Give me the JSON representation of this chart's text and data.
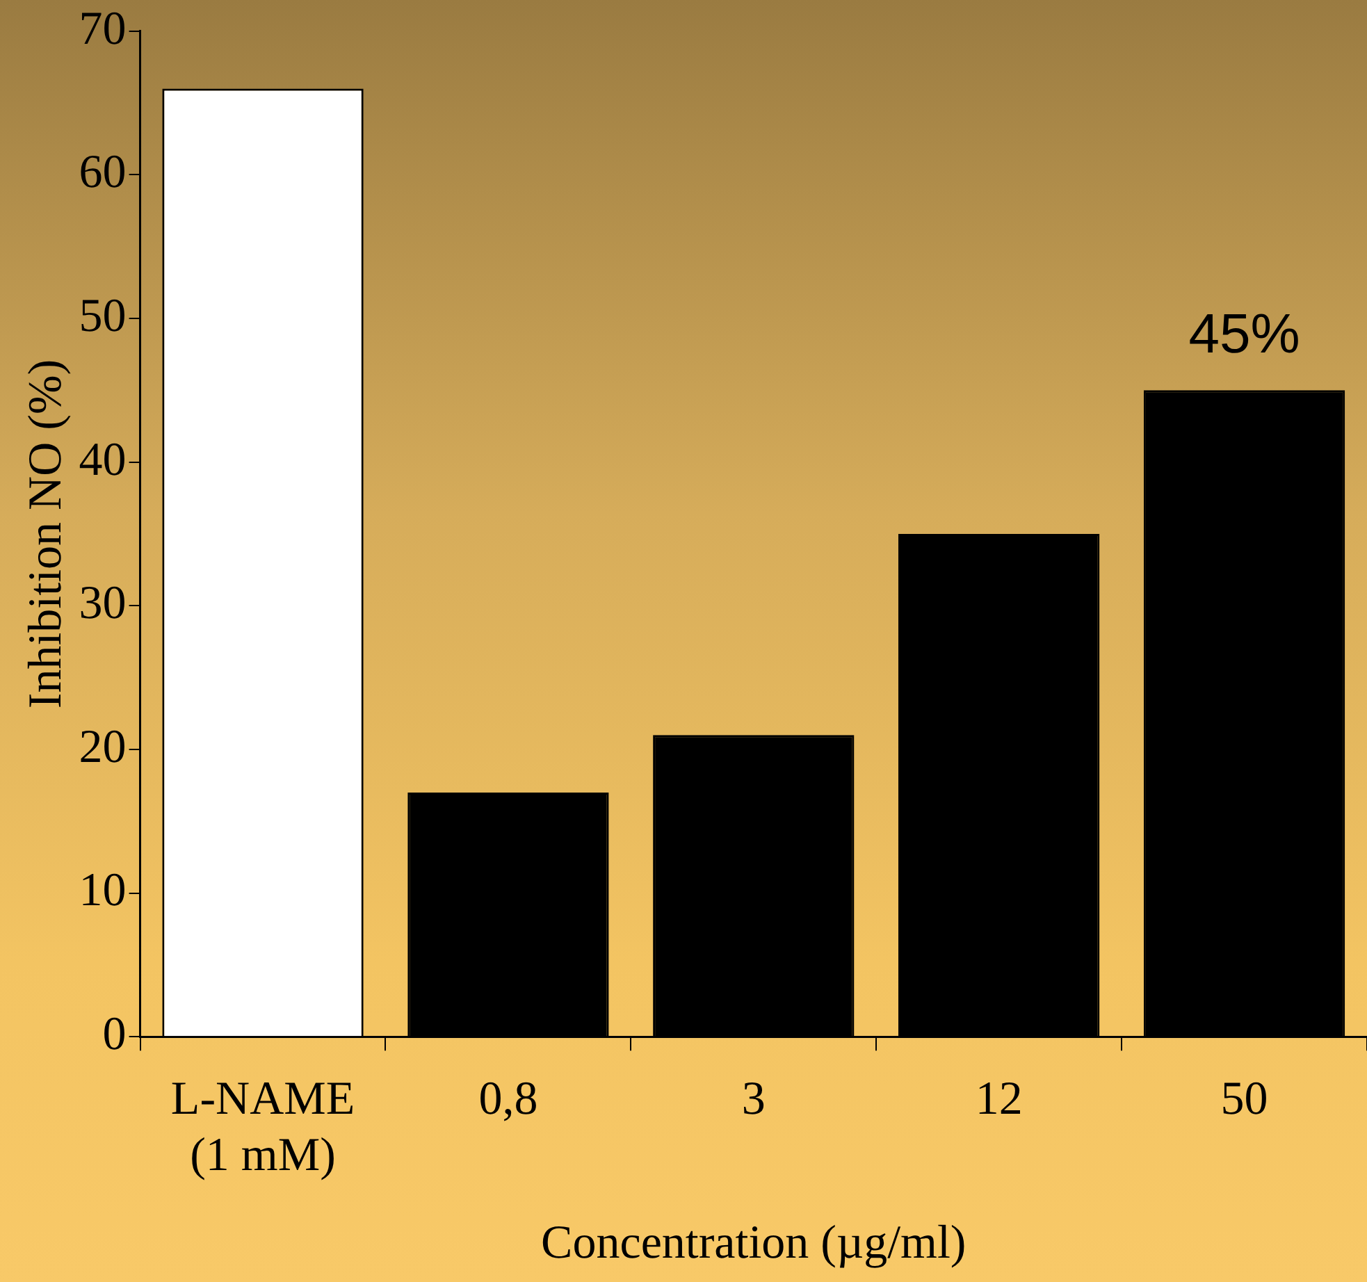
{
  "chart_data": {
    "type": "bar",
    "xlabel": "Concentration (µg/ml)",
    "ylabel": "Inhibition NO (%)",
    "categories": [
      "L-NAME\n(1 mM)",
      "0,8",
      "3",
      "12",
      "50"
    ],
    "values": [
      66,
      17,
      21,
      35,
      45
    ],
    "colors": [
      "#ffffff",
      "#000000",
      "#000000",
      "#000000",
      "#000000"
    ],
    "value_labels": [
      null,
      null,
      null,
      null,
      "45%"
    ],
    "ylim": [
      0,
      70
    ],
    "yticks": [
      0,
      10,
      20,
      30,
      40,
      50,
      60,
      70
    ],
    "grid": false,
    "legend": false
  }
}
